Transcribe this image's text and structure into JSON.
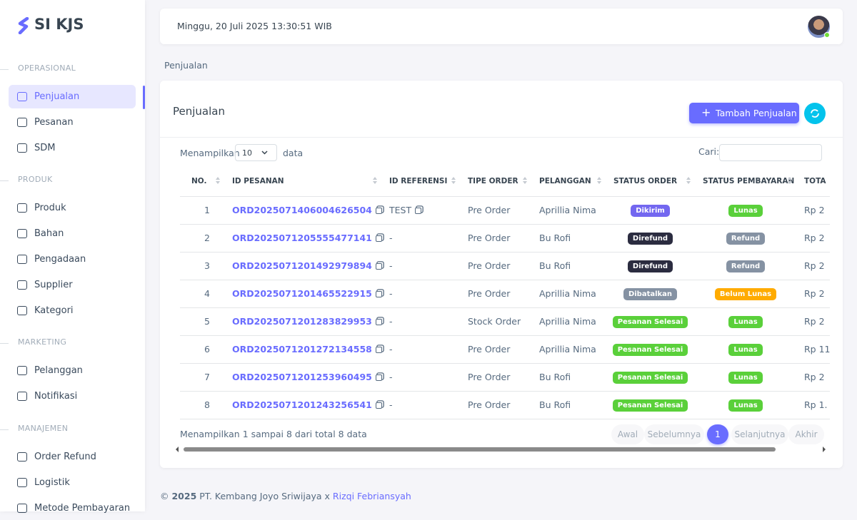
{
  "brand": "SI KJS",
  "sidebar": [
    {
      "title": "OPERASIONAL",
      "items": [
        "Penjualan",
        "Pesanan",
        "SDM"
      ]
    },
    {
      "title": "PRODUK",
      "items": [
        "Produk",
        "Bahan",
        "Pengadaan",
        "Supplier",
        "Kategori"
      ]
    },
    {
      "title": "MARKETING",
      "items": [
        "Pelanggan",
        "Notifikasi"
      ]
    },
    {
      "title": "MANAJEMEN",
      "items": [
        "Order Refund",
        "Logistik",
        "Metode Pembayaran"
      ]
    }
  ],
  "header": {
    "datetime": "Minggu, 20 Juli 2025 13:30:51 WIB"
  },
  "breadcrumb": "Penjualan",
  "card": {
    "title": "Penjualan",
    "button": "Tambah Penjualan"
  },
  "controls": {
    "show_prefix": "Menampilkan",
    "page_size": "10",
    "show_suffix": "data",
    "search_label": "Cari:"
  },
  "table": {
    "columns": [
      "NO.",
      "ID PESANAN",
      "ID REFERENSI",
      "TIPE ORDER",
      "PELANGGAN",
      "STATUS ORDER",
      "STATUS PEMBAYARAN",
      "TOTA"
    ],
    "rows": [
      [
        "1",
        "ORD2025071406004626504",
        "TEST",
        "Pre Order",
        "Aprillia Nima",
        "Dikirim",
        "Lunas",
        "Rp 2"
      ],
      [
        "2",
        "ORD2025071205555477141",
        "-",
        "Pre Order",
        "Bu Rofi",
        "Direfund",
        "Refund",
        "Rp 2"
      ],
      [
        "3",
        "ORD2025071201492979894",
        "-",
        "Pre Order",
        "Bu Rofi",
        "Direfund",
        "Refund",
        "Rp 2"
      ],
      [
        "4",
        "ORD2025071201465522915",
        "-",
        "Pre Order",
        "Aprillia Nima",
        "Dibatalkan",
        "Belum Lunas",
        "Rp 2"
      ],
      [
        "5",
        "ORD2025071201283829953",
        "-",
        "Stock Order",
        "Aprillia Nima",
        "Pesanan Selesai",
        "Lunas",
        "Rp 2"
      ],
      [
        "6",
        "ORD2025071201272134558",
        "-",
        "Pre Order",
        "Aprillia Nima",
        "Pesanan Selesai",
        "Lunas",
        "Rp 11"
      ],
      [
        "7",
        "ORD2025071201253960495",
        "-",
        "Pre Order",
        "Bu Rofi",
        "Pesanan Selesai",
        "Lunas",
        "Rp 2"
      ],
      [
        "8",
        "ORD2025071201243256541",
        "-",
        "Pre Order",
        "Bu Rofi",
        "Pesanan Selesai",
        "Lunas",
        "Rp 1."
      ]
    ]
  },
  "table_info": "Menampilkan 1 sampai 8 dari total 8 data",
  "pagination": [
    "Awal",
    "Sebelumnya",
    "1",
    "Selanjutnya",
    "Akhir"
  ],
  "footer": {
    "copyright": "©",
    "year": "2025",
    "company": "PT. Kembang Joyo Sriwijaya x",
    "author": "Rizqi Febriansyah"
  }
}
